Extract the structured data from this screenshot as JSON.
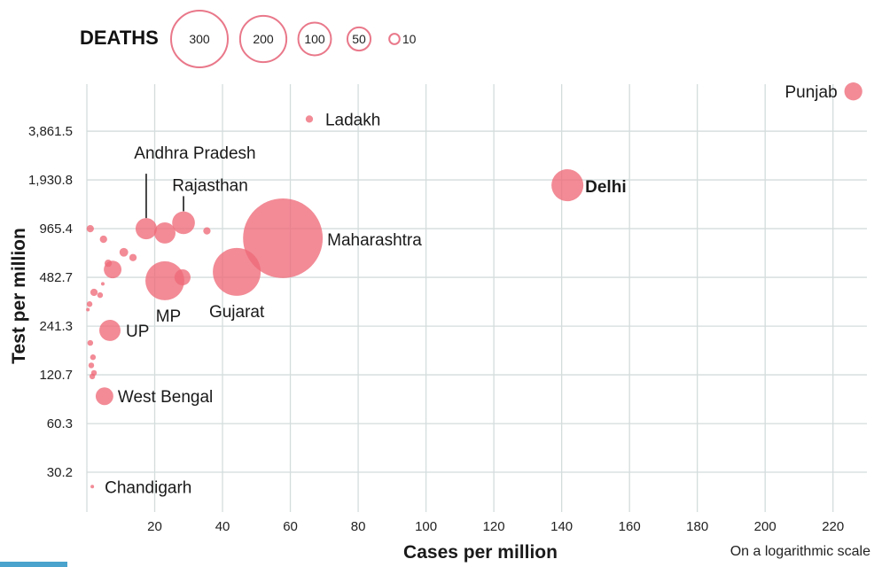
{
  "chart_data": {
    "type": "scatter",
    "subtype": "bubble",
    "title": "",
    "xlabel": "Cases per million",
    "ylabel": "Test per million",
    "note": "On a logarithmic scale",
    "x_scale": "linear",
    "y_scale": "log2",
    "xlim": [
      0,
      232
    ],
    "ylim": [
      21,
      7600
    ],
    "grid": true,
    "x_ticks": [
      20,
      40,
      60,
      80,
      100,
      120,
      140,
      160,
      180,
      200,
      220
    ],
    "y_ticks": [
      30.2,
      60.3,
      120.7,
      241.3,
      482.7,
      965.4,
      1930.8,
      3861.5
    ],
    "y_tick_labels": [
      "30.2",
      "60.3",
      "120.7",
      "241.3",
      "482.7",
      "965.4",
      "1,930.8",
      "3,861.5"
    ],
    "size_legend": {
      "title": "DEATHS",
      "position": "top-left",
      "values": [
        300,
        200,
        100,
        50,
        10
      ],
      "labels": [
        "300",
        "200",
        "100",
        "50",
        "10"
      ]
    },
    "color": "#ee6a78",
    "points": [
      {
        "label": "Punjab",
        "x": 226,
        "y": 6800,
        "deaths": 30
      },
      {
        "label": "Ladakh",
        "x": 65.6,
        "y": 4590,
        "deaths": 5
      },
      {
        "label": "Delhi",
        "x": 141.7,
        "y": 1790,
        "deaths": 95,
        "bold": true
      },
      {
        "label": "Maharashtra",
        "x": 57.8,
        "y": 842,
        "deaths": 590
      },
      {
        "label": "Andhra Pradesh",
        "x": 17.5,
        "y": 965,
        "deaths": 42
      },
      {
        "label": "Rajasthan",
        "x": 28.5,
        "y": 1050,
        "deaths": 48
      },
      {
        "label": "",
        "x": 23,
        "y": 908,
        "deaths": 42
      },
      {
        "label": "Gujarat",
        "x": 44.2,
        "y": 522,
        "deaths": 213
      },
      {
        "label": "MP",
        "x": 23,
        "y": 460,
        "deaths": 141
      },
      {
        "label": "",
        "x": 28.2,
        "y": 483,
        "deaths": 24
      },
      {
        "label": "UP",
        "x": 6.8,
        "y": 227,
        "deaths": 42
      },
      {
        "label": "West Bengal",
        "x": 5.2,
        "y": 89,
        "deaths": 29
      },
      {
        "label": "Chandigarh",
        "x": 1.6,
        "y": 24.6,
        "deaths": 1
      },
      {
        "label": "",
        "x": 35.4,
        "y": 935,
        "deaths": 5
      },
      {
        "label": "",
        "x": 1.0,
        "y": 965,
        "deaths": 5
      },
      {
        "label": "",
        "x": 4.9,
        "y": 830,
        "deaths": 5
      },
      {
        "label": "",
        "x": 10.9,
        "y": 690,
        "deaths": 7
      },
      {
        "label": "",
        "x": 13.6,
        "y": 640,
        "deaths": 5
      },
      {
        "label": "",
        "x": 6.3,
        "y": 590,
        "deaths": 5
      },
      {
        "label": "",
        "x": 7.6,
        "y": 540,
        "deaths": 29
      },
      {
        "label": "",
        "x": 4.7,
        "y": 440,
        "deaths": 1
      },
      {
        "label": "",
        "x": 2.1,
        "y": 390,
        "deaths": 5
      },
      {
        "label": "",
        "x": 3.9,
        "y": 375,
        "deaths": 3
      },
      {
        "label": "",
        "x": 0.8,
        "y": 330,
        "deaths": 3
      },
      {
        "label": "",
        "x": 0.3,
        "y": 305,
        "deaths": 1
      },
      {
        "label": "",
        "x": 1.0,
        "y": 190,
        "deaths": 3
      },
      {
        "label": "",
        "x": 1.8,
        "y": 155,
        "deaths": 3
      },
      {
        "label": "",
        "x": 1.3,
        "y": 138,
        "deaths": 3
      },
      {
        "label": "",
        "x": 2.1,
        "y": 124,
        "deaths": 3
      },
      {
        "label": "",
        "x": 1.6,
        "y": 118,
        "deaths": 3
      }
    ]
  }
}
